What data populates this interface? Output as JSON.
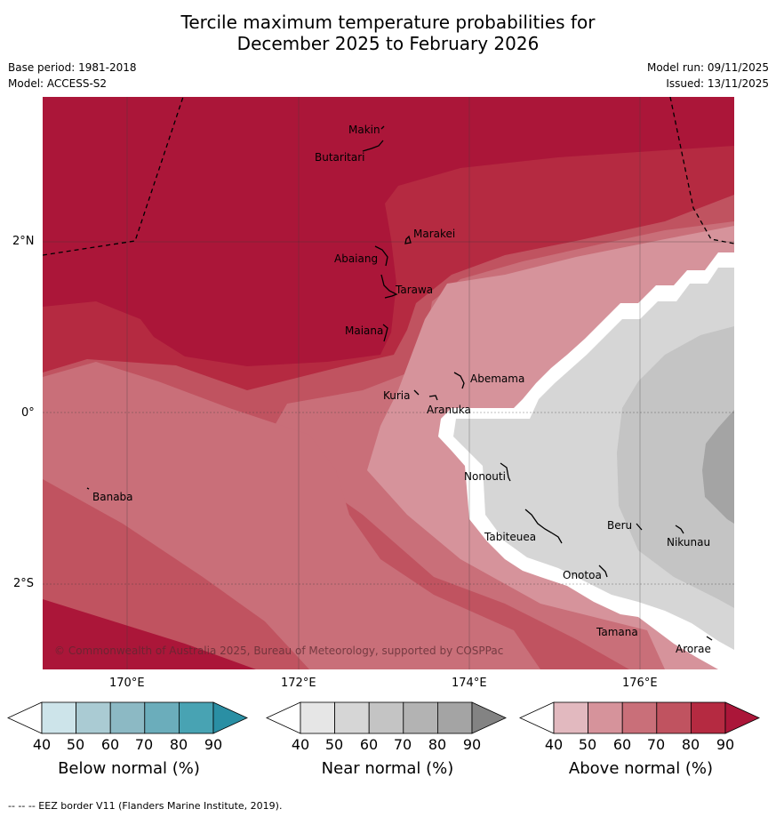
{
  "title": {
    "line1": "Tercile maximum temperature probabilities for",
    "line2": "December 2025 to February 2026"
  },
  "meta": {
    "base_period": "Base period: 1981-2018",
    "model": "Model: ACCESS-S2",
    "model_run": "Model run: 09/11/2025",
    "issued": "Issued: 13/11/2025"
  },
  "axes": {
    "lat_labels": [
      "2°N",
      "0°",
      "2°S"
    ],
    "lon_labels": [
      "170°E",
      "172°E",
      "174°E",
      "176°E"
    ]
  },
  "map": {
    "islands": [
      "Makin",
      "Butaritari",
      "Marakei",
      "Abaiang",
      "Tarawa",
      "Maiana",
      "Abemama",
      "Kuria",
      "Aranuka",
      "Banaba",
      "Nonouti",
      "Tabiteuea",
      "Beru",
      "Nikunau",
      "Onotoa",
      "Tamana",
      "Arorae"
    ],
    "copyright": "© Commonwealth of Australia 2025, Bureau of Meteorology, supported by COSPPac"
  },
  "legends": {
    "below": {
      "title": "Below normal (%)",
      "ticks": [
        "40",
        "50",
        "60",
        "70",
        "80",
        "90"
      ],
      "colors": [
        "#ffffff",
        "#cde4ea",
        "#aacbd3",
        "#8cb9c4",
        "#6badbb",
        "#48a3b3",
        "#2a8fa4"
      ]
    },
    "near": {
      "title": "Near normal (%)",
      "ticks": [
        "40",
        "50",
        "60",
        "70",
        "80",
        "90"
      ],
      "colors": [
        "#ffffff",
        "#e6e6e6",
        "#d6d6d6",
        "#c4c4c4",
        "#b3b3b3",
        "#a4a4a4",
        "#838383"
      ]
    },
    "above": {
      "title": "Above normal (%)",
      "ticks": [
        "40",
        "50",
        "60",
        "70",
        "80",
        "90"
      ],
      "colors": [
        "#ffffff",
        "#e2b9bf",
        "#d6939b",
        "#c96f79",
        "#c05360",
        "#b52a41",
        "#ab1639"
      ]
    }
  },
  "footer": "--  --  -- EEZ border V11 (Flanders Marine Institute, 2019)."
}
